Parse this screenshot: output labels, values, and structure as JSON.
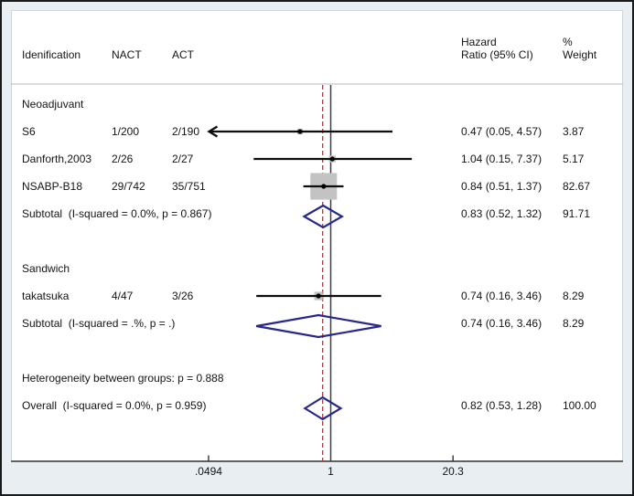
{
  "colors": {
    "outer_background": "#e9eef3",
    "panel_background": "#ffffff",
    "frame_border": "#1a1a1a",
    "panel_border": "#ccd6dd",
    "separator": "#b8b8b8",
    "axis_line": "#333333",
    "null_line": "#3d3d3d",
    "overall_dashed_line": "#a93c3c",
    "ci_line": "#0d0d0d",
    "marker_square": "#c3c3c3",
    "marker_dot": "#000000",
    "diamond_outline": "#28288c",
    "text": "#141414"
  },
  "header": {
    "id_label": "Idenification",
    "nact_label": "NACT",
    "act_label": "ACT",
    "hr_label_line1": "Hazard",
    "hr_label_line2": "Ratio (95% CI)",
    "weight_label_line1": "%",
    "weight_label_line2": "Weight"
  },
  "chart_data": {
    "type": "forest",
    "x_scale": "log",
    "axis_ticks": [
      {
        "label": ".0494",
        "value": 0.0494
      },
      {
        "label": "1",
        "value": 1
      },
      {
        "label": "20.3",
        "value": 20.3
      }
    ],
    "null_line_value": 1,
    "overall_estimate_line": 0.82,
    "groups": [
      {
        "name": "Neoadjuvant",
        "studies": [
          {
            "id": "S6",
            "nact": "1/200",
            "act": "2/190",
            "hr": 0.47,
            "lo": 0.05,
            "hi": 4.57,
            "hr_text": "0.47 (0.05, 4.57)",
            "weight": "3.87",
            "arrow_left": true
          },
          {
            "id": "Danforth,2003",
            "nact": "2/26",
            "act": "2/27",
            "hr": 1.04,
            "lo": 0.15,
            "hi": 7.37,
            "hr_text": "1.04 (0.15, 7.37)",
            "weight": "5.17"
          },
          {
            "id": "NSABP-B18",
            "nact": "29/742",
            "act": "35/751",
            "hr": 0.84,
            "lo": 0.51,
            "hi": 1.37,
            "hr_text": "0.84 (0.51, 1.37)",
            "weight": "82.67"
          }
        ],
        "subtotal": {
          "label": "Subtotal  (I-squared = 0.0%, p = 0.867)",
          "hr": 0.83,
          "lo": 0.52,
          "hi": 1.32,
          "hr_text": "0.83 (0.52, 1.32)",
          "weight": "91.71"
        }
      },
      {
        "name": "Sandwich",
        "studies": [
          {
            "id": "takatsuka",
            "nact": "4/47",
            "act": "3/26",
            "hr": 0.74,
            "lo": 0.16,
            "hi": 3.46,
            "hr_text": "0.74 (0.16, 3.46)",
            "weight": "8.29"
          }
        ],
        "subtotal": {
          "label": "Subtotal  (I-squared = .%, p = .)",
          "hr": 0.74,
          "lo": 0.16,
          "hi": 3.46,
          "hr_text": "0.74 (0.16, 3.46)",
          "weight": "8.29"
        }
      }
    ],
    "heterogeneity_note": "Heterogeneity between groups: p = 0.888",
    "overall": {
      "label": "Overall  (I-squared = 0.0%, p = 0.959)",
      "hr": 0.82,
      "lo": 0.53,
      "hi": 1.28,
      "hr_text": "0.82 (0.53, 1.28)",
      "weight": "100.00"
    }
  }
}
